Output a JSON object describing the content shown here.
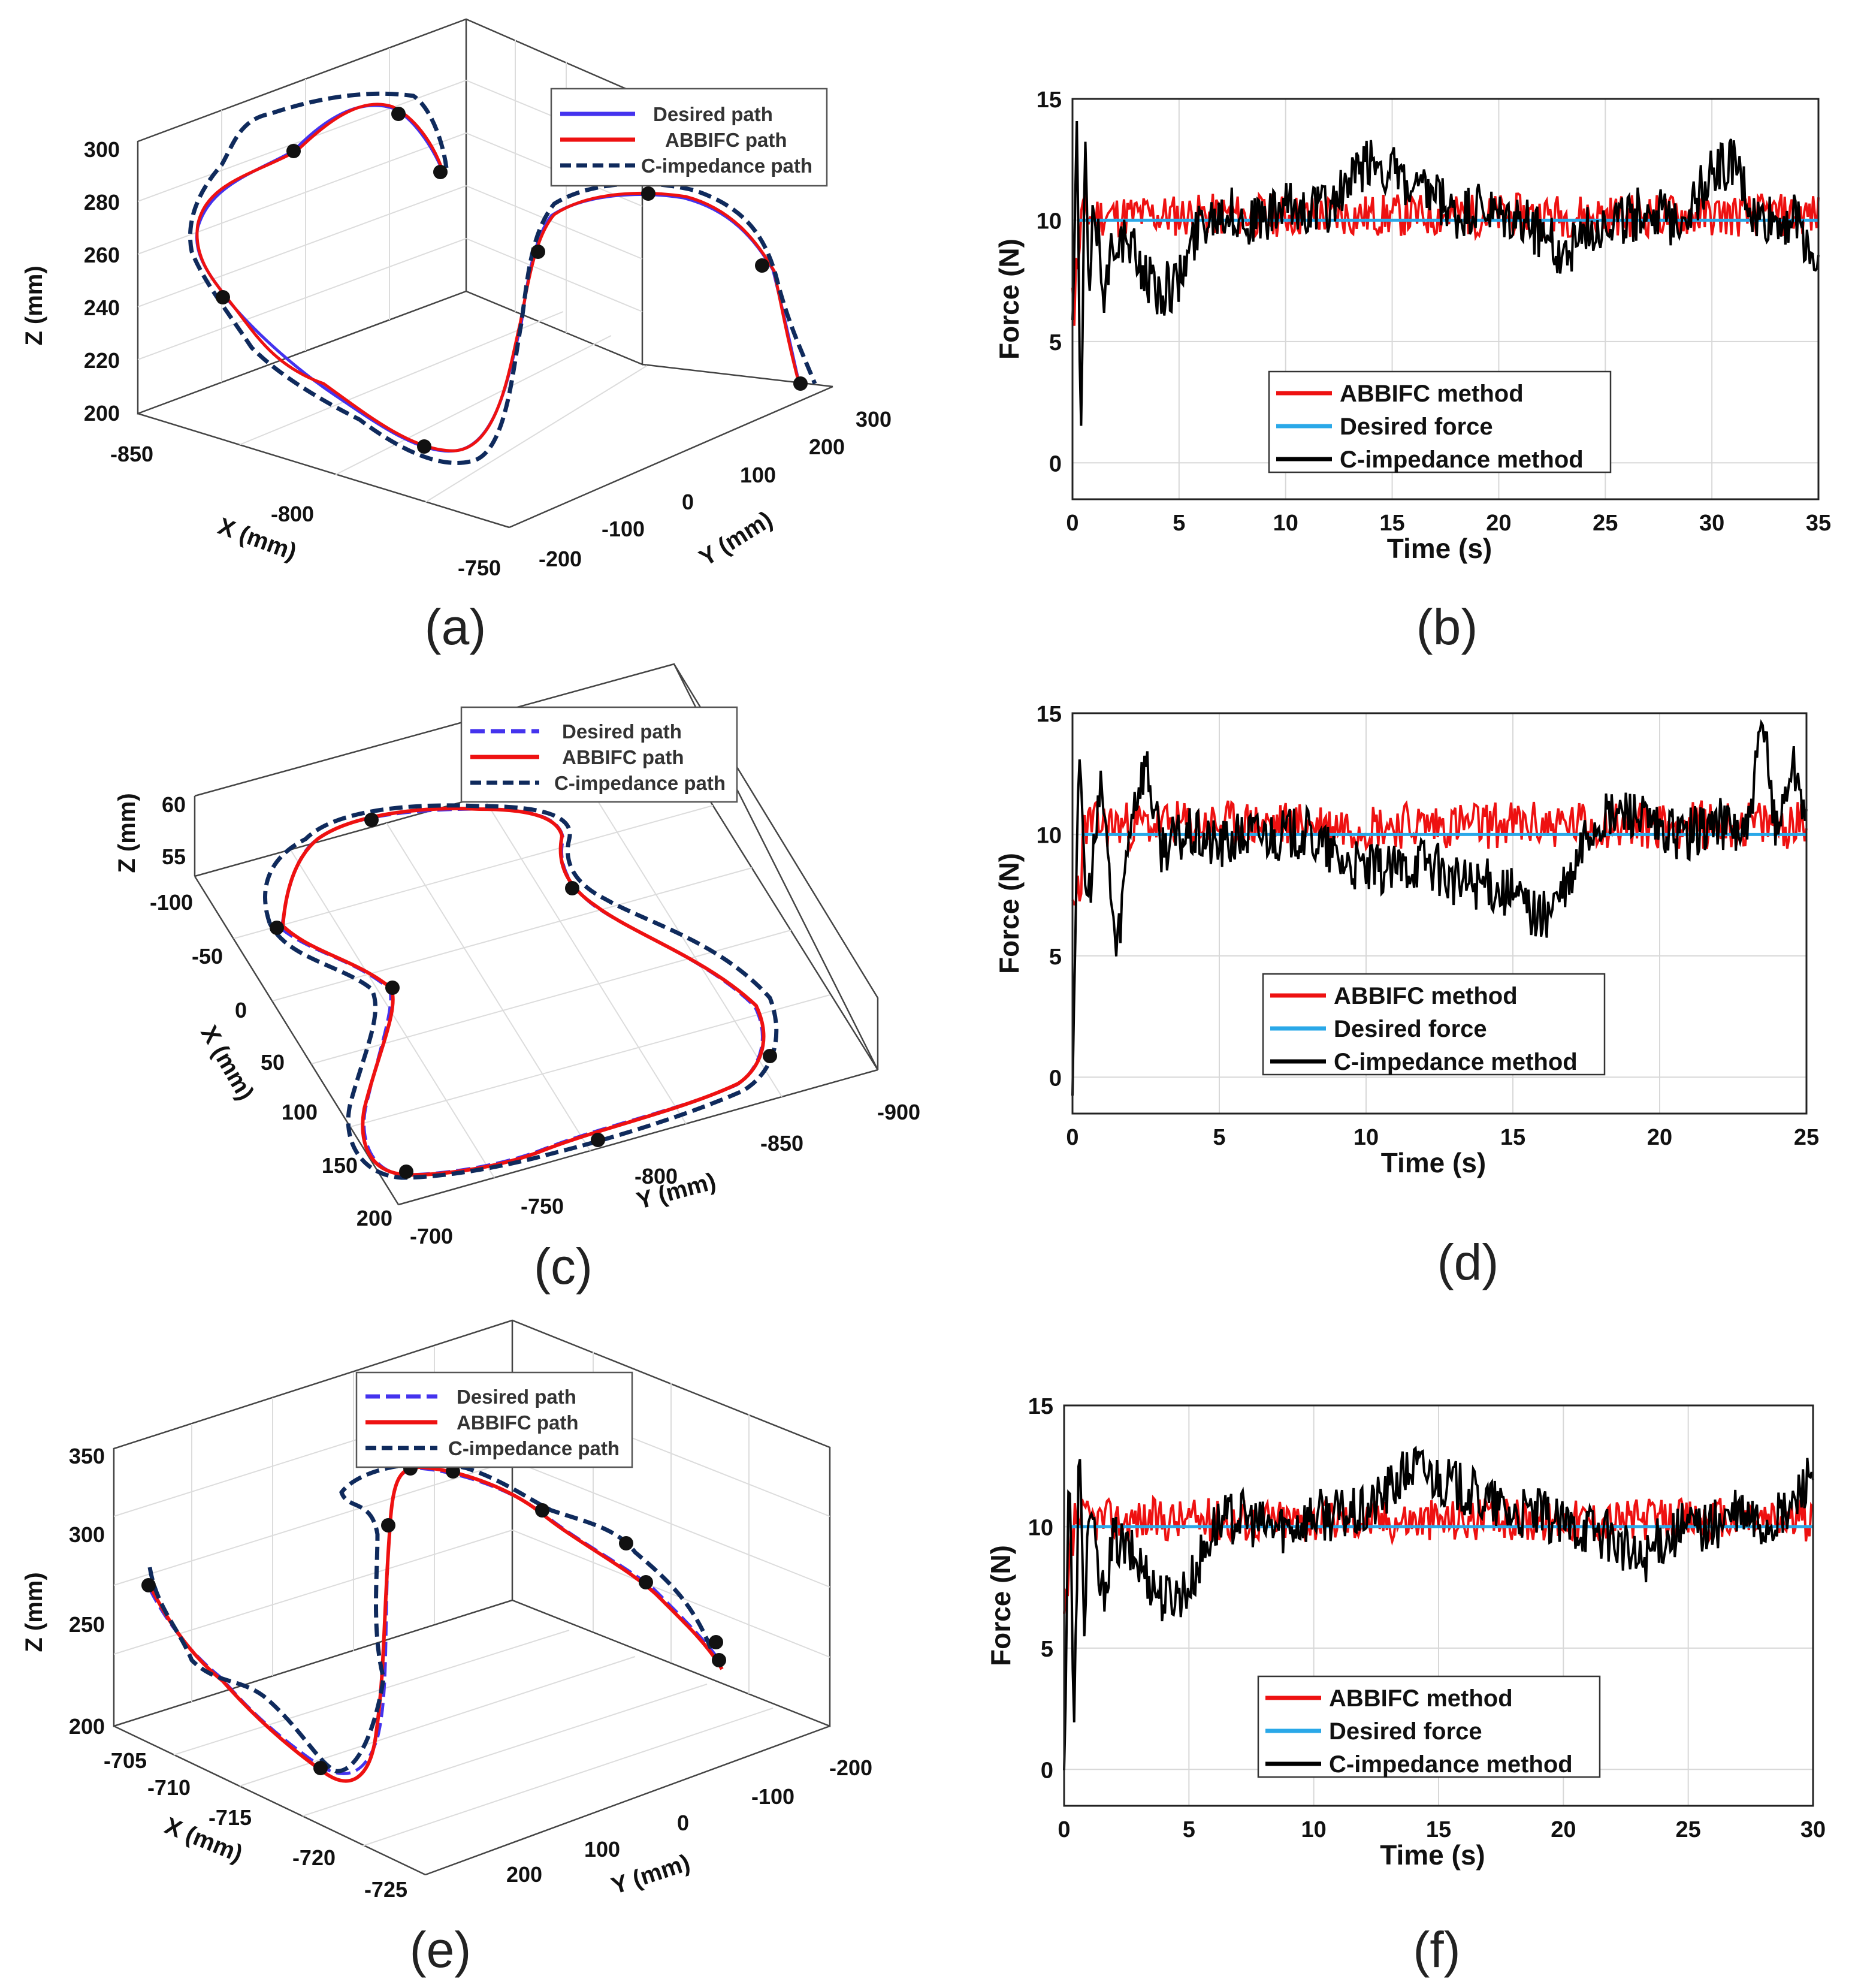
{
  "colors": {
    "desired_path": "#4433ee",
    "abbifc": "#ee1111",
    "cimp": "#0f2a5c",
    "desired_force": "#2aa8e8",
    "cimp_force": "#000000",
    "grid": "#d8d8d8"
  },
  "panels": {
    "a": "(a)",
    "b": "(b)",
    "c": "(c)",
    "d": "(d)",
    "e": "(e)",
    "f": "(f)"
  },
  "legend3d": {
    "desired": "Desired path",
    "abbifc": "ABBIFC path",
    "cimp": "C-impedance path"
  },
  "legend2d": {
    "abbifc": "ABBIFC method",
    "desired": "Desired force",
    "cimp": "C-impedance method"
  },
  "paths": [
    {
      "id": "a",
      "zlabel": "Z (mm)",
      "xlabel": "X (mm)",
      "ylabel": "Y (mm)",
      "zticks": [
        "300",
        "280",
        "260",
        "240",
        "220",
        "200"
      ],
      "xticks": [
        "-850",
        "-800",
        "-750"
      ],
      "yticks": [
        "-200",
        "-100",
        "0",
        "100",
        "200",
        "300"
      ]
    },
    {
      "id": "c",
      "zlabel": "Z (mm)",
      "xlabel": "X (mm)",
      "ylabel": "Y (mm)",
      "zticks": [
        "60",
        "55"
      ],
      "xticks": [
        "-100",
        "-50",
        "0",
        "50",
        "100",
        "150",
        "200"
      ],
      "yticks": [
        "-700",
        "-750",
        "-800",
        "-850",
        "-900"
      ]
    },
    {
      "id": "e",
      "zlabel": "Z (mm)",
      "xlabel": "X (mm)",
      "ylabel": "Y (mm)",
      "zticks": [
        "350",
        "300",
        "250",
        "200"
      ],
      "xticks": [
        "-705",
        "-710",
        "-715",
        "-720",
        "-725"
      ],
      "yticks": [
        "200",
        "100",
        "0",
        "-100",
        "-200"
      ]
    }
  ],
  "chart_data": [
    {
      "id": "b",
      "type": "line",
      "xlabel": "Time (s)",
      "ylabel": "Force (N)",
      "xlim": [
        0,
        35
      ],
      "ylim": [
        -1.5,
        15
      ],
      "xticks": [
        0,
        5,
        10,
        15,
        20,
        25,
        30,
        35
      ],
      "yticks": [
        0,
        5,
        10,
        15
      ],
      "series": [
        {
          "name": "ABBIFC method",
          "mean": 10.2,
          "spread": 0.9
        },
        {
          "name": "Desired force",
          "value": 10
        },
        {
          "name": "C-impedance method",
          "x": [
            0,
            0.2,
            0.4,
            0.6,
            0.8,
            1,
            1.5,
            2,
            3,
            4,
            5,
            6,
            7,
            8,
            9,
            10,
            11,
            12,
            13,
            14,
            15,
            16,
            17,
            18,
            19,
            20,
            21,
            22,
            23,
            24,
            25,
            26,
            27,
            28,
            29,
            30,
            31,
            32,
            33,
            34,
            35
          ],
          "y": [
            5.5,
            13.5,
            1,
            13.4,
            6,
            11,
            7,
            9.5,
            8.5,
            7,
            7.5,
            10,
            10.5,
            10,
            10,
            10.5,
            10.5,
            10.5,
            11.5,
            12.5,
            12,
            11,
            11,
            10,
            10.5,
            10,
            10,
            9.5,
            8.5,
            9.5,
            10,
            10,
            10.5,
            10,
            10.5,
            12,
            12.5,
            10,
            10,
            10,
            8
          ]
        }
      ]
    },
    {
      "id": "d",
      "type": "line",
      "xlabel": "Time (s)",
      "ylabel": "Force (N)",
      "xlim": [
        0,
        25
      ],
      "ylim": [
        -1.5,
        15
      ],
      "xticks": [
        0,
        5,
        10,
        15,
        20,
        25
      ],
      "yticks": [
        0,
        5,
        10,
        15
      ],
      "series": [
        {
          "name": "ABBIFC method",
          "mean": 10.4,
          "spread": 1.0
        },
        {
          "name": "Desired force",
          "value": 10
        },
        {
          "name": "C-impedance method",
          "x": [
            0,
            0.2,
            0.5,
            1,
            1.5,
            2,
            2.5,
            3,
            4,
            5,
            6,
            7,
            8,
            9,
            10,
            11,
            12,
            13,
            14,
            15,
            16,
            17,
            17.5,
            18,
            19,
            20,
            21,
            22,
            23,
            23.5,
            24,
            24.5,
            25
          ],
          "y": [
            0,
            13,
            7,
            12,
            5,
            11,
            13,
            9.5,
            10,
            9.5,
            10,
            10,
            10,
            9,
            8.5,
            8.5,
            9,
            8,
            8,
            7.5,
            6.5,
            8,
            10,
            10.5,
            11,
            10,
            10,
            10.5,
            10,
            14.5,
            10,
            13,
            11
          ]
        }
      ]
    },
    {
      "id": "f",
      "type": "line",
      "xlabel": "Time (s)",
      "ylabel": "Force (N)",
      "xlim": [
        0,
        30
      ],
      "ylim": [
        -1.5,
        15
      ],
      "xticks": [
        0,
        5,
        10,
        15,
        20,
        25,
        30
      ],
      "yticks": [
        0,
        5,
        10,
        15
      ],
      "series": [
        {
          "name": "ABBIFC method",
          "mean": 10.3,
          "spread": 0.9
        },
        {
          "name": "Desired force",
          "value": 10
        },
        {
          "name": "C-impedance method",
          "x": [
            0,
            0.2,
            0.4,
            0.6,
            0.8,
            1,
            1.5,
            2,
            3,
            4,
            5,
            6,
            7,
            8,
            9,
            10,
            11,
            12,
            13,
            14,
            15,
            16,
            17,
            18,
            19,
            20,
            21,
            22,
            23,
            24,
            25,
            26,
            27,
            28,
            29,
            30
          ],
          "y": [
            -0.5,
            13.5,
            1,
            13.4,
            6,
            11,
            7,
            9.5,
            8.5,
            7,
            7.5,
            10,
            10.5,
            10,
            10,
            10.5,
            10.5,
            10.5,
            11.5,
            12.5,
            12,
            11.5,
            11,
            10.5,
            10.5,
            10,
            10,
            9.5,
            8.5,
            9.5,
            10,
            10,
            10.5,
            10,
            10.5,
            12.5
          ]
        }
      ]
    }
  ]
}
